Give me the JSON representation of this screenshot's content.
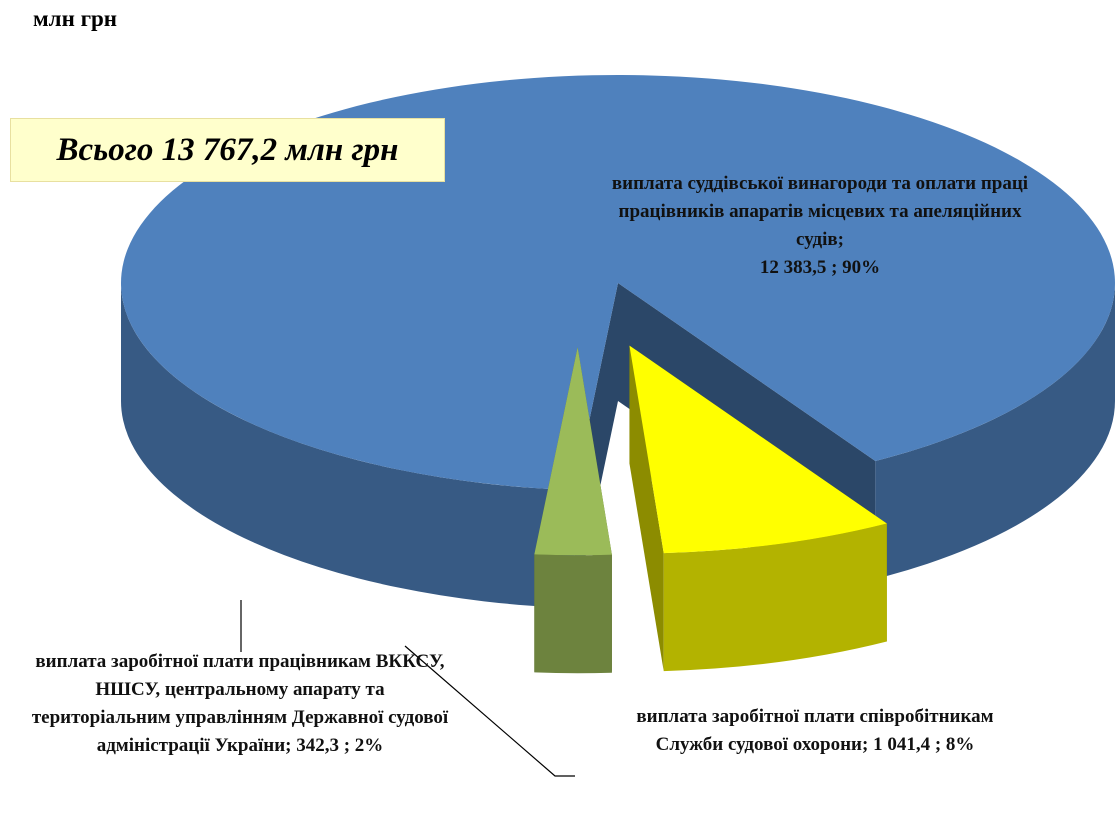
{
  "chart_data": {
    "type": "pie",
    "unit": "млн грн",
    "annotation": "Всього 13 767,2 млн грн",
    "categories": [
      "виплата суддівської винагороди та оплати праці працівників апаратів місцевих та апеляційних судів;",
      "виплата заробітної плати співробітникам Служби судової охорони;",
      "виплата заробітної плати працівникам ВККСУ, НШСУ, центральному апарату та територіальним управлінням Державної судової адміністрації України;"
    ],
    "values": [
      12383.5,
      1041.4,
      342.3
    ],
    "value_labels": [
      "12 383,5 ; 90%",
      "1 041,4 ; 8%",
      "342,3 ; 2%"
    ],
    "colors": [
      "#4f81bd",
      "#ffff00",
      "#9bbb59"
    ]
  }
}
